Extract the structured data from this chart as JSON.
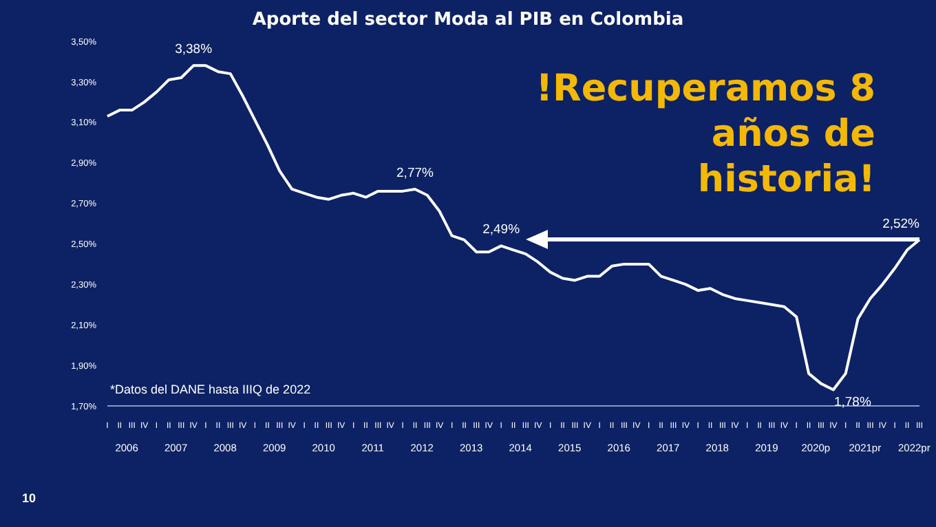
{
  "chart_data": {
    "type": "line",
    "title": "Aporte del sector Moda al PIB en Colombia",
    "categories": [
      "I",
      "II",
      "III",
      "IV",
      "I",
      "II",
      "III",
      "IV",
      "I",
      "II",
      "III",
      "IV",
      "I",
      "II",
      "III",
      "IV",
      "I",
      "II",
      "III",
      "IV",
      "I",
      "II",
      "III",
      "IV",
      "I",
      "II",
      "III",
      "IV",
      "I",
      "II",
      "III",
      "IV",
      "I",
      "II",
      "III",
      "IV",
      "I",
      "II",
      "III",
      "IV",
      "I",
      "II",
      "III",
      "IV",
      "I",
      "II",
      "III",
      "IV",
      "I",
      "II",
      "III",
      "IV",
      "I",
      "II",
      "III",
      "IV",
      "I",
      "II",
      "III",
      "IV",
      "I",
      "II",
      "III",
      "IV",
      "I",
      "II",
      "III"
    ],
    "series": [
      {
        "color": "#ffffff",
        "values": [
          3.13,
          3.16,
          3.16,
          3.2,
          3.25,
          3.31,
          3.32,
          3.38,
          3.38,
          3.35,
          3.34,
          3.23,
          3.11,
          2.99,
          2.86,
          2.77,
          2.75,
          2.73,
          2.72,
          2.74,
          2.75,
          2.73,
          2.76,
          2.76,
          2.76,
          2.77,
          2.74,
          2.66,
          2.54,
          2.52,
          2.46,
          2.46,
          2.49,
          2.47,
          2.45,
          2.41,
          2.36,
          2.33,
          2.32,
          2.34,
          2.34,
          2.39,
          2.4,
          2.4,
          2.4,
          2.34,
          2.32,
          2.3,
          2.27,
          2.28,
          2.25,
          2.23,
          2.22,
          2.21,
          2.2,
          2.19,
          2.14,
          1.86,
          1.81,
          1.78,
          1.86,
          2.13,
          2.23,
          2.3,
          2.38,
          2.47,
          2.52
        ],
        "value_labels": [
          null,
          null,
          null,
          null,
          null,
          null,
          null,
          "3,38%",
          null,
          null,
          null,
          null,
          null,
          null,
          null,
          null,
          null,
          null,
          null,
          null,
          null,
          null,
          null,
          null,
          null,
          "2,77%",
          null,
          null,
          null,
          null,
          null,
          null,
          "2,49%",
          null,
          null,
          null,
          null,
          null,
          null,
          null,
          null,
          null,
          null,
          null,
          null,
          null,
          null,
          null,
          null,
          null,
          null,
          null,
          null,
          null,
          null,
          null,
          null,
          null,
          null,
          "1,78%",
          null,
          null,
          null,
          null,
          null,
          null,
          "2,52%"
        ]
      }
    ],
    "ylim": [
      1.7,
      3.5
    ],
    "yticks": [
      {
        "value": 1.7,
        "label": "1,70%"
      },
      {
        "value": 1.9,
        "label": "1,90%"
      },
      {
        "value": 2.1,
        "label": "2,10%"
      },
      {
        "value": 2.3,
        "label": "2,30%"
      },
      {
        "value": 2.5,
        "label": "2,50%"
      },
      {
        "value": 2.7,
        "label": "2,70%"
      },
      {
        "value": 2.9,
        "label": "2,90%"
      },
      {
        "value": 3.1,
        "label": "3,10%"
      },
      {
        "value": 3.3,
        "label": "3,30%"
      },
      {
        "value": 3.5,
        "label": "3,50%"
      }
    ],
    "grid": false,
    "legend": false,
    "marker": "none",
    "line_style": "solid",
    "annotations": [
      "*Datos del DANE hasta IIIQ de 2022",
      "!Recuperamos 8 años de historia!",
      "10",
      "2006",
      "2007",
      "2008",
      "2009",
      "2010",
      "2011",
      "2012",
      "2013",
      "2014",
      "2015",
      "2016",
      "2017",
      "2018",
      "2019",
      "2020p",
      "2021pr",
      "2022pr"
    ]
  }
}
